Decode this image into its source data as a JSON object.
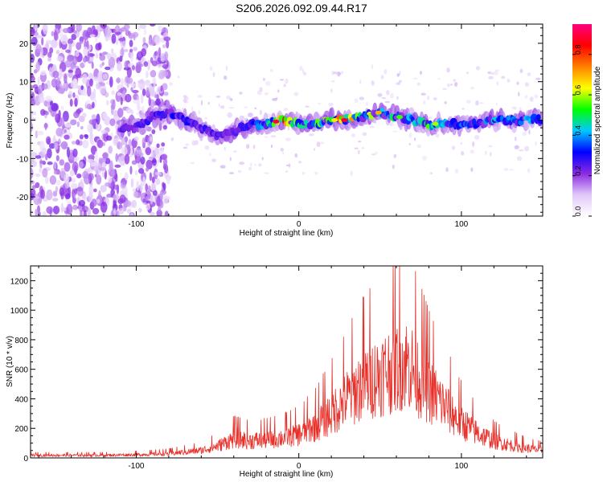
{
  "figure": {
    "title": "S206.2026.092.09.44.R17"
  },
  "chart_data": [
    {
      "type": "heatmap",
      "xlabel": "Height of straight line (km)",
      "ylabel": "Frequency (Hz)",
      "xlim": [
        -165,
        150
      ],
      "ylim": [
        -25,
        25
      ],
      "xticks": [
        -100,
        0,
        100
      ],
      "yticks": [
        -20,
        -10,
        0,
        10,
        20
      ],
      "colorbar": {
        "label": "Normalized spectral amplitude",
        "range": [
          0,
          0.95
        ],
        "ticks": [
          0.0,
          0.2,
          0.4,
          0.6,
          0.8
        ],
        "colormap": [
          "#ffffff",
          "#e0c8f8",
          "#8a2be2",
          "#0000ff",
          "#00c8ff",
          "#00ff00",
          "#ffff00",
          "#ff8000",
          "#ff0000",
          "#ff0080"
        ]
      },
      "ridge": {
        "x": [
          -110,
          -100,
          -90,
          -80,
          -70,
          -60,
          -50,
          -40,
          -30,
          -20,
          -10,
          0,
          10,
          20,
          30,
          40,
          50,
          60,
          70,
          80,
          90,
          100,
          110,
          120,
          130,
          140,
          150
        ],
        "freq": [
          -2,
          -2,
          1,
          2,
          0,
          -2,
          -4,
          -3,
          -1,
          -1,
          0,
          -1,
          -1,
          0,
          0,
          1,
          2,
          1,
          0,
          -1,
          -1,
          -1,
          -1,
          0,
          0,
          0,
          0
        ],
        "peak_amplitude": [
          0.25,
          0.3,
          0.3,
          0.3,
          0.35,
          0.3,
          0.3,
          0.25,
          0.3,
          0.5,
          0.9,
          0.5,
          0.55,
          0.65,
          0.9,
          0.6,
          0.7,
          0.5,
          0.45,
          0.6,
          0.45,
          0.4,
          0.35,
          0.45,
          0.4,
          0.45,
          0.35
        ]
      }
    },
    {
      "type": "line",
      "xlabel": "Height of straight line (km)",
      "ylabel": "SNR (10 * v/v)",
      "xlim": [
        -165,
        150
      ],
      "ylim": [
        0,
        1300
      ],
      "xticks": [
        -100,
        0,
        100
      ],
      "yticks": [
        0,
        200,
        400,
        600,
        800,
        1000,
        1200
      ],
      "color": "#e8302a",
      "envelope": {
        "x": [
          -165,
          -140,
          -120,
          -100,
          -80,
          -60,
          -50,
          -40,
          -30,
          -20,
          -10,
          0,
          10,
          20,
          30,
          40,
          50,
          60,
          65,
          70,
          80,
          90,
          100,
          110,
          120,
          130,
          140,
          150
        ],
        "y": [
          25,
          25,
          25,
          30,
          40,
          70,
          110,
          180,
          160,
          170,
          190,
          220,
          300,
          420,
          560,
          700,
          780,
          860,
          900,
          830,
          640,
          480,
          330,
          230,
          160,
          120,
          90,
          70
        ]
      }
    }
  ]
}
